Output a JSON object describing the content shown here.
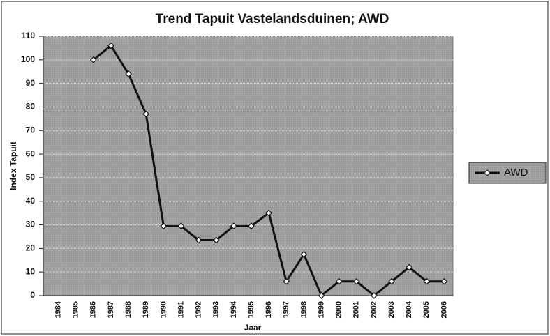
{
  "chart_data": {
    "type": "line",
    "title": "Trend Tapuit Vastelandsduinen; AWD",
    "xlabel": "Jaar",
    "ylabel": "Index Tapuit",
    "categories": [
      "1984",
      "1985",
      "1986",
      "1987",
      "1988",
      "1989",
      "1990",
      "1991",
      "1992",
      "1993",
      "1994",
      "1995",
      "1996",
      "1997",
      "1998",
      "1999",
      "2000",
      "2001",
      "2002",
      "2003",
      "2004",
      "2005",
      "2006"
    ],
    "series": [
      {
        "name": "AWD",
        "color": "#111111",
        "values": [
          null,
          null,
          100,
          106,
          94,
          77,
          29.5,
          29.5,
          23.5,
          23.5,
          29.5,
          29.5,
          35,
          6,
          17.5,
          0,
          6,
          6,
          0,
          6,
          12,
          6,
          6
        ]
      }
    ],
    "ylim": [
      0,
      110
    ],
    "yticks": [
      0,
      10,
      20,
      30,
      40,
      50,
      60,
      70,
      80,
      90,
      100,
      110
    ],
    "grid": true,
    "legend": "right"
  }
}
